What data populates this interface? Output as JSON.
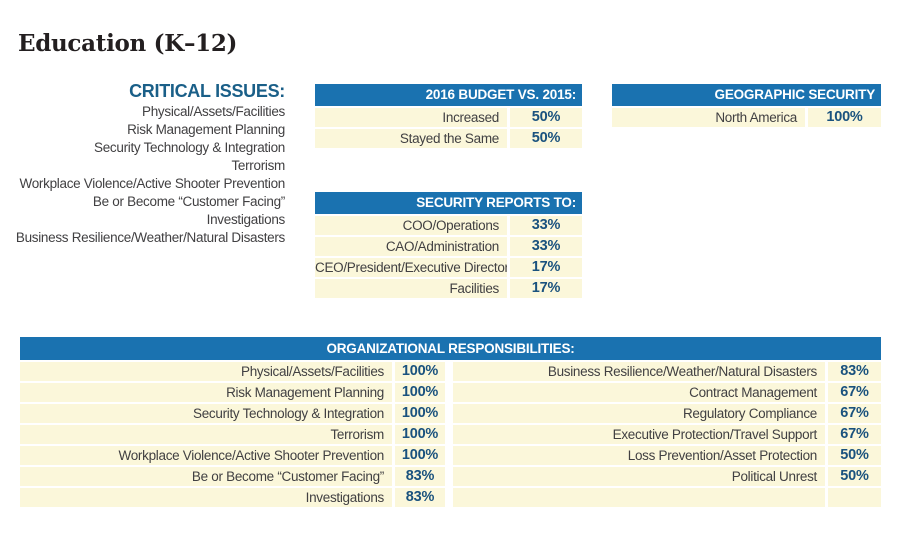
{
  "page": {
    "title": "Education (K–12)"
  },
  "colors": {
    "header_blue": "#1a72b0",
    "value_blue": "#1a527e",
    "heading_blue": "#1a5f88",
    "cell_cream": "#fbf7da",
    "label_text": "#414042",
    "title_text": "#231f20"
  },
  "critical_issues": {
    "heading": "CRITICAL ISSUES:",
    "items": [
      "Physical/Assets/Facilities",
      "Risk Management Planning",
      "Security Technology & Integration",
      "Terrorism",
      "Workplace Violence/Active Shooter Prevention",
      "Be or Become “Customer Facing”",
      "Investigations",
      "Business Resilience/Weather/Natural Disasters"
    ]
  },
  "tables": {
    "budget": {
      "heading": "2016 BUDGET VS. 2015:",
      "rows": [
        {
          "label": "Increased",
          "value": "50%"
        },
        {
          "label": "Stayed the Same",
          "value": "50%"
        }
      ]
    },
    "geographic": {
      "heading": "GEOGRAPHIC SECURITY RESPONSIBILITY:",
      "rows": [
        {
          "label": "North America",
          "value": "100%"
        }
      ]
    },
    "reports_to": {
      "heading": "SECURITY REPORTS TO:",
      "rows": [
        {
          "label": "COO/Operations",
          "value": "33%"
        },
        {
          "label": "CAO/Administration",
          "value": "33%"
        },
        {
          "label": "CEO/President/Executive Director",
          "value": "17%"
        },
        {
          "label": "Facilities",
          "value": "17%"
        }
      ]
    },
    "org_responsibilities": {
      "heading": "ORGANIZATIONAL RESPONSIBILITIES:",
      "left_rows": [
        {
          "label": "Physical/Assets/Facilities",
          "value": "100%"
        },
        {
          "label": "Risk Management Planning",
          "value": "100%"
        },
        {
          "label": "Security Technology & Integration",
          "value": "100%"
        },
        {
          "label": "Terrorism",
          "value": "100%"
        },
        {
          "label": "Workplace Violence/Active Shooter Prevention",
          "value": "100%"
        },
        {
          "label": "Be or Become “Customer Facing”",
          "value": "83%"
        },
        {
          "label": "Investigations",
          "value": "83%"
        }
      ],
      "right_rows": [
        {
          "label": "Business Resilience/Weather/Natural Disasters",
          "value": "83%"
        },
        {
          "label": "Contract Management",
          "value": "67%"
        },
        {
          "label": "Regulatory Compliance",
          "value": "67%"
        },
        {
          "label": "Executive Protection/Travel Support",
          "value": "67%"
        },
        {
          "label": "Loss Prevention/Asset Protection",
          "value": "50%"
        },
        {
          "label": "Political Unrest",
          "value": "50%"
        },
        {
          "label": "",
          "value": ""
        }
      ]
    }
  }
}
